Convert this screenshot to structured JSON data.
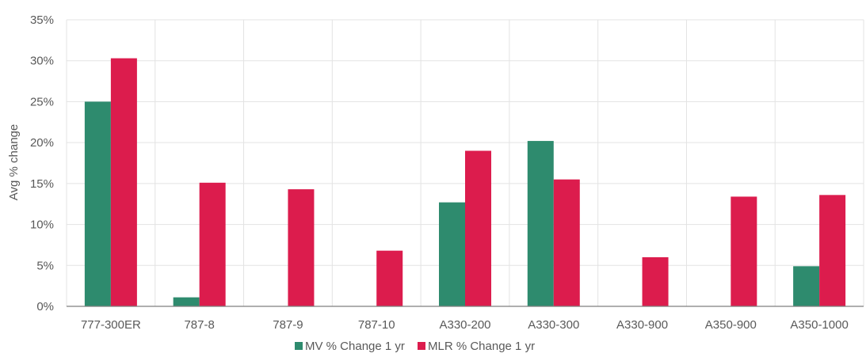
{
  "chart_data": {
    "type": "bar",
    "title": "",
    "xlabel": "",
    "ylabel": "Avg % change",
    "ylim": [
      0,
      35
    ],
    "y_ticks": [
      "0%",
      "5%",
      "10%",
      "15%",
      "20%",
      "25%",
      "30%",
      "35%"
    ],
    "grid": true,
    "legend_position": "bottom",
    "categories": [
      "777-300ER",
      "787-8",
      "787-9",
      "787-10",
      "A330-200",
      "A330-300",
      "A330-900",
      "A350-900",
      "A350-1000"
    ],
    "series": [
      {
        "name": "MV % Change 1 yr",
        "color": "#2e8b6e",
        "values": [
          25.0,
          1.1,
          null,
          null,
          12.7,
          20.2,
          null,
          null,
          4.9
        ]
      },
      {
        "name": "MLR % Change 1 yr",
        "color": "#dc1c4d",
        "values": [
          30.3,
          15.1,
          14.3,
          6.8,
          19.0,
          15.5,
          6.0,
          13.4,
          13.6
        ]
      }
    ]
  }
}
